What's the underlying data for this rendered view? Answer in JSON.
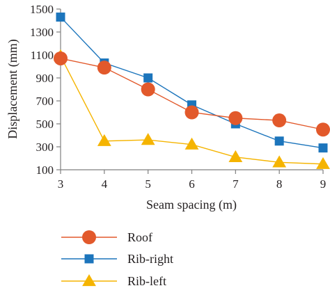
{
  "chart_data": {
    "type": "line",
    "title": "",
    "xlabel": "Seam spacing (m)",
    "ylabel": "Displacement (mm)",
    "x": [
      3,
      4,
      5,
      6,
      7,
      8,
      9
    ],
    "xlim": [
      3,
      9
    ],
    "ylim": [
      100,
      1500
    ],
    "yticks": [
      100,
      300,
      500,
      700,
      900,
      1100,
      1300,
      1500
    ],
    "grid": false,
    "legend_position": "bottom",
    "series": [
      {
        "name": "Roof",
        "values": [
          1070,
          990,
          800,
          600,
          550,
          530,
          450
        ],
        "color": "#e2592b",
        "marker": "circle"
      },
      {
        "name": "Rib-right",
        "values": [
          1430,
          1030,
          900,
          665,
          500,
          350,
          290
        ],
        "color": "#1c75bc",
        "marker": "square"
      },
      {
        "name": "Rib-left",
        "values": [
          1090,
          350,
          360,
          320,
          210,
          165,
          150
        ],
        "color": "#f5b400",
        "marker": "triangle"
      }
    ]
  }
}
